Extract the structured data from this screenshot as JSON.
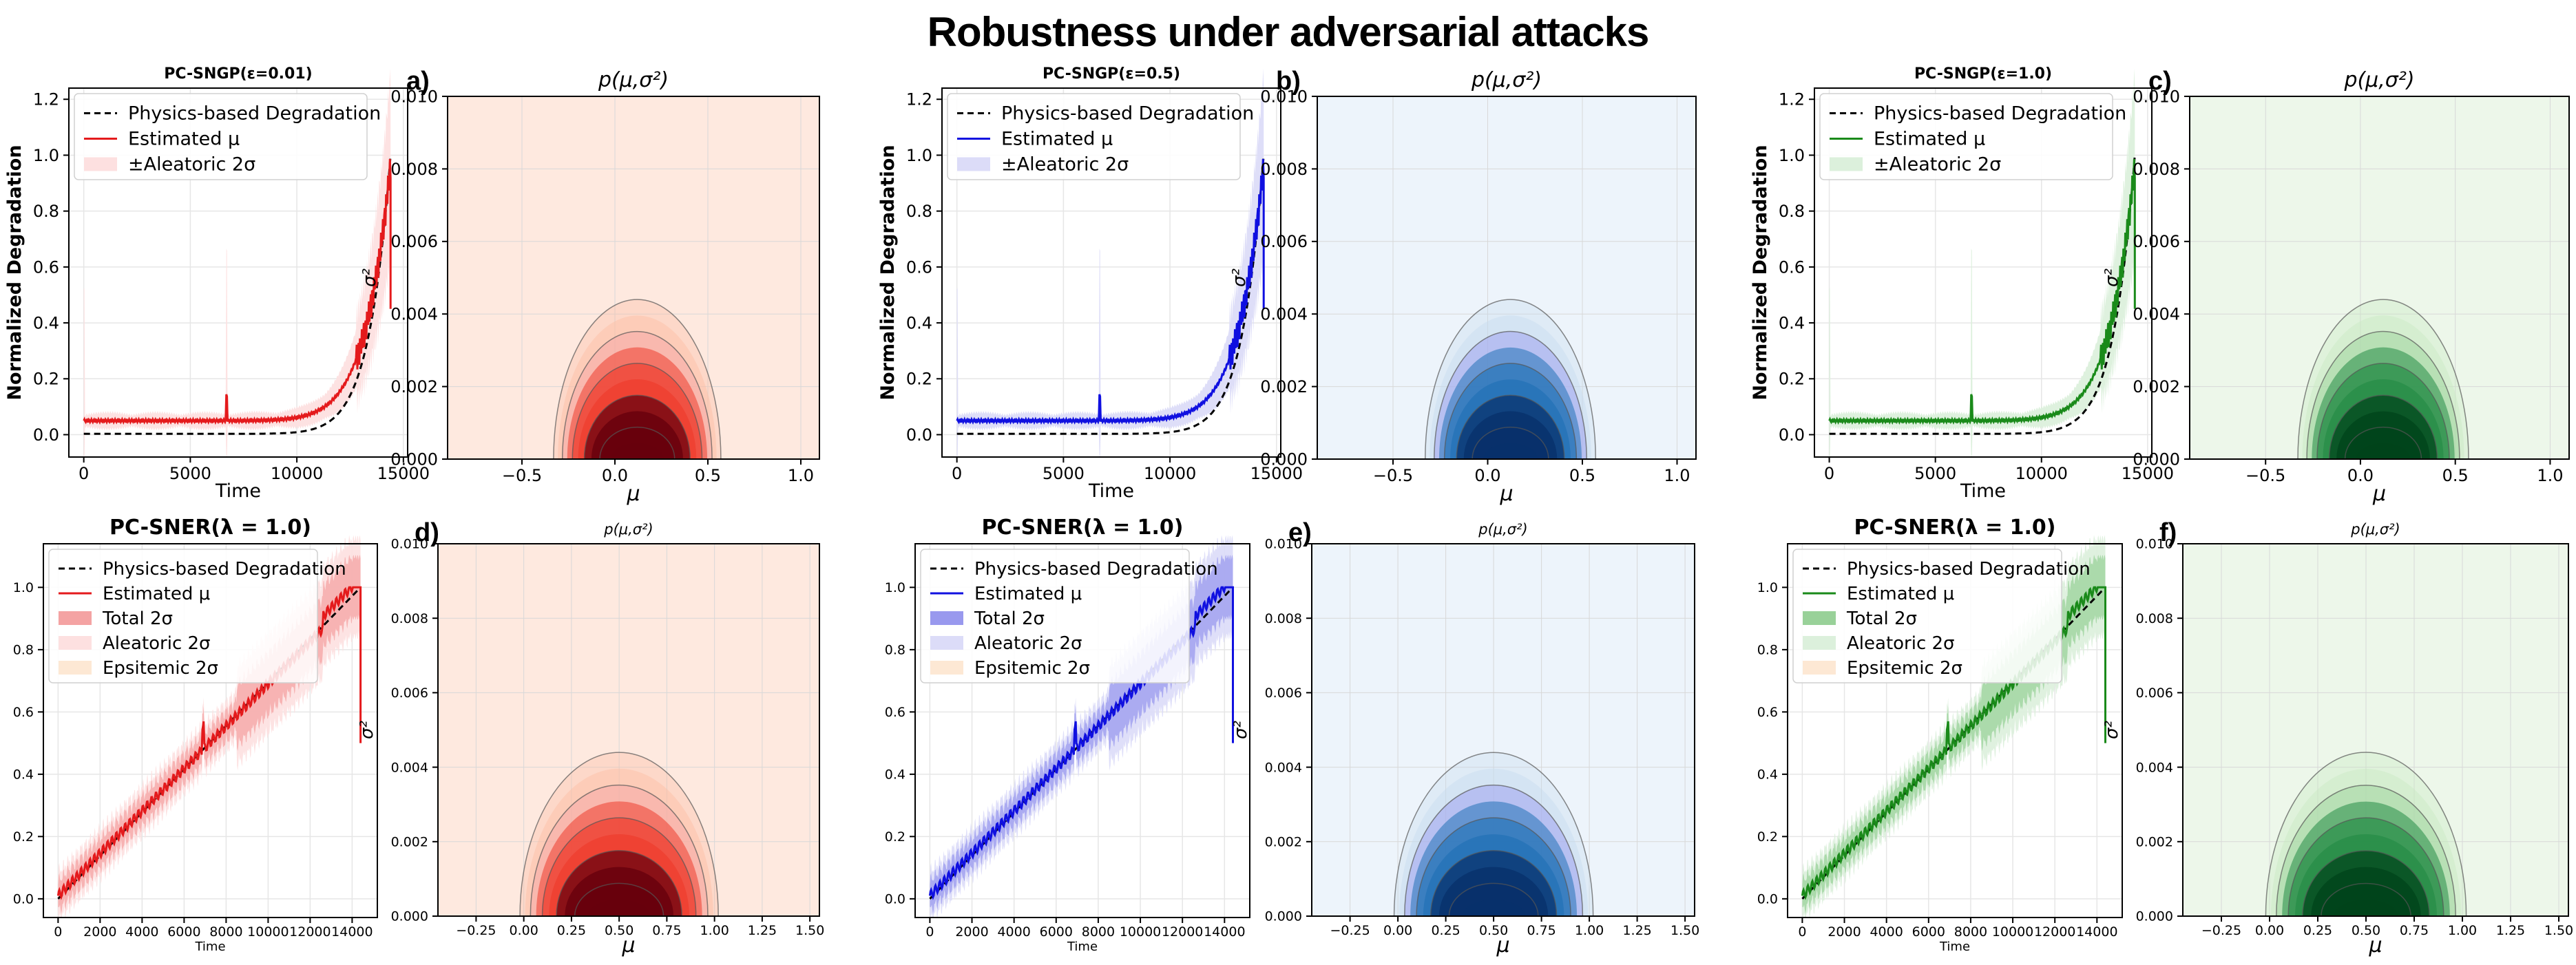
{
  "title": "Robustness under adversarial attacks",
  "colors": {
    "red": {
      "line": "#e41a1c",
      "fill": "#f4a3a3",
      "light": "#fde0e0",
      "bg": "#fee9df",
      "dark": "#67000d",
      "mid": "#ef3b2c",
      "pale": "#fcbba1"
    },
    "blue": {
      "line": "#1010e0",
      "fill": "#9999ee",
      "light": "#dcdcf8",
      "bg": "#edf4fb",
      "dark": "#08306b",
      "mid": "#2171b5",
      "pale": "#c6dbef"
    },
    "green": {
      "line": "#1a8a1a",
      "fill": "#99d199",
      "light": "#dcf0dc",
      "bg": "#edf7ea",
      "dark": "#00441b",
      "mid": "#238b45",
      "pale": "#c7e9c0"
    },
    "epistemic": "#fde8d4"
  },
  "chart_data": [
    {
      "id": "top-red-degradation",
      "type": "line",
      "title": "PC-SNGP(ε=0.01)",
      "color": "red",
      "xlabel": "Time",
      "ylabel": "Normalized Degradation",
      "xlim": [
        -700,
        15200
      ],
      "ylim": [
        -0.08,
        1.24
      ],
      "xticks": [
        0,
        5000,
        10000,
        15000
      ],
      "xtick_labels": [
        "0",
        "5000",
        "10000",
        "15000"
      ],
      "yticks": [
        0.0,
        0.2,
        0.4,
        0.6,
        0.8,
        1.0,
        1.2
      ],
      "ytick_labels": [
        "0.0",
        "0.2",
        "0.4",
        "0.6",
        "0.8",
        "1.0",
        "1.2"
      ],
      "legend": [
        "Physics-based Degradation",
        "Estimated μ",
        "±Aleatoric 2σ"
      ],
      "spike": 6700
    },
    {
      "id": "top-red-density",
      "type": "heatmap",
      "title": "p(μ,σ²)",
      "label": "a)",
      "color": "red",
      "xlabel": "μ",
      "ylabel": "σ²",
      "xlim": [
        -0.9,
        1.1
      ],
      "ylim": [
        0.0,
        0.01
      ],
      "xticks": [
        -0.5,
        0.0,
        0.5,
        1.0
      ],
      "xtick_labels": [
        "−0.5",
        "0.0",
        "0.5",
        "1.0"
      ],
      "yticks": [
        0.0,
        0.002,
        0.004,
        0.006,
        0.008,
        0.01
      ],
      "ytick_labels": [
        "0.000",
        "0.002",
        "0.004",
        "0.006",
        "0.008",
        "0.010"
      ],
      "center": 0.12,
      "halfwidth": 0.45,
      "height": 0.0044
    },
    {
      "id": "top-blue-degradation",
      "type": "line",
      "title": "PC-SNGP(ε=0.5)",
      "color": "blue",
      "xlabel": "Time",
      "ylabel": "Normalized Degradation",
      "xlim": [
        -700,
        15200
      ],
      "ylim": [
        -0.08,
        1.24
      ],
      "xticks": [
        0,
        5000,
        10000,
        15000
      ],
      "xtick_labels": [
        "0",
        "5000",
        "10000",
        "15000"
      ],
      "yticks": [
        0.0,
        0.2,
        0.4,
        0.6,
        0.8,
        1.0,
        1.2
      ],
      "ytick_labels": [
        "0.0",
        "0.2",
        "0.4",
        "0.6",
        "0.8",
        "1.0",
        "1.2"
      ],
      "legend": [
        "Physics-based Degradation",
        "Estimated μ",
        "±Aleatoric 2σ"
      ],
      "spike": 6700
    },
    {
      "id": "top-blue-density",
      "type": "heatmap",
      "title": "p(μ,σ²)",
      "label": "b)",
      "color": "blue",
      "xlabel": "μ",
      "ylabel": "σ²",
      "xlim": [
        -0.9,
        1.1
      ],
      "ylim": [
        0.0,
        0.01
      ],
      "xticks": [
        -0.5,
        0.0,
        0.5,
        1.0
      ],
      "xtick_labels": [
        "−0.5",
        "0.0",
        "0.5",
        "1.0"
      ],
      "yticks": [
        0.0,
        0.002,
        0.004,
        0.006,
        0.008,
        0.01
      ],
      "ytick_labels": [
        "0.000",
        "0.002",
        "0.004",
        "0.006",
        "0.008",
        "0.010"
      ],
      "center": 0.12,
      "halfwidth": 0.45,
      "height": 0.0044
    },
    {
      "id": "top-green-degradation",
      "type": "line",
      "title": "PC-SNGP(ε=1.0)",
      "color": "green",
      "xlabel": "Time",
      "ylabel": "Normalized Degradation",
      "xlim": [
        -700,
        15200
      ],
      "ylim": [
        -0.08,
        1.24
      ],
      "xticks": [
        0,
        5000,
        10000,
        15000
      ],
      "xtick_labels": [
        "0",
        "5000",
        "10000",
        "15000"
      ],
      "yticks": [
        0.0,
        0.2,
        0.4,
        0.6,
        0.8,
        1.0,
        1.2
      ],
      "ytick_labels": [
        "0.0",
        "0.2",
        "0.4",
        "0.6",
        "0.8",
        "1.0",
        "1.2"
      ],
      "legend": [
        "Physics-based Degradation",
        "Estimated μ",
        "±Aleatoric 2σ"
      ],
      "spike": 6700
    },
    {
      "id": "top-green-density",
      "type": "heatmap",
      "title": "p(μ,σ²)",
      "label": "c)",
      "color": "green",
      "xlabel": "μ",
      "ylabel": "σ²",
      "xlim": [
        -0.9,
        1.1
      ],
      "ylim": [
        0.0,
        0.01
      ],
      "xticks": [
        -0.5,
        0.0,
        0.5,
        1.0
      ],
      "xtick_labels": [
        "−0.5",
        "0.0",
        "0.5",
        "1.0"
      ],
      "yticks": [
        0.0,
        0.002,
        0.004,
        0.006,
        0.008,
        0.01
      ],
      "ytick_labels": [
        "0.000",
        "0.002",
        "0.004",
        "0.006",
        "0.008",
        "0.010"
      ],
      "center": 0.12,
      "halfwidth": 0.45,
      "height": 0.0044
    },
    {
      "id": "bottom-red-degradation",
      "type": "line",
      "title": "PC-SNER(λ = 1.0)",
      "color": "red",
      "xlabel": "Time",
      "ylabel": "",
      "xlim": [
        -700,
        15200
      ],
      "ylim": [
        -0.06,
        1.14
      ],
      "xticks": [
        0,
        2000,
        4000,
        6000,
        8000,
        10000,
        12000,
        14000
      ],
      "xtick_labels": [
        "0",
        "2000",
        "4000",
        "6000",
        "8000",
        "10000",
        "12000",
        "14000"
      ],
      "yticks": [
        0.0,
        0.2,
        0.4,
        0.6,
        0.8,
        1.0
      ],
      "ytick_labels": [
        "0.0",
        "0.2",
        "0.4",
        "0.6",
        "0.8",
        "1.0"
      ],
      "legend": [
        "Physics-based Degradation",
        "Estimated μ",
        "Total 2σ",
        "Aleatoric 2σ",
        "Epsitemic 2σ"
      ],
      "spike": 6900
    },
    {
      "id": "bottom-red-density",
      "type": "heatmap",
      "title": "p(μ,σ²)",
      "label": "d)",
      "color": "red",
      "xlabel": "μ",
      "ylabel": "σ²",
      "xlim": [
        -0.45,
        1.55
      ],
      "ylim": [
        0.0,
        0.01
      ],
      "xticks": [
        -0.25,
        0.0,
        0.25,
        0.5,
        0.75,
        1.0,
        1.25,
        1.5
      ],
      "xtick_labels": [
        "−0.25",
        "0.00",
        "0.25",
        "0.50",
        "0.75",
        "1.00",
        "1.25",
        "1.50"
      ],
      "yticks": [
        0.0,
        0.002,
        0.004,
        0.006,
        0.008,
        0.01
      ],
      "ytick_labels": [
        "0.000",
        "0.002",
        "0.004",
        "0.006",
        "0.008",
        "0.010"
      ],
      "center": 0.5,
      "halfwidth": 0.52,
      "height": 0.0044
    },
    {
      "id": "bottom-blue-degradation",
      "type": "line",
      "title": "PC-SNER(λ = 1.0)",
      "color": "blue",
      "xlabel": "Time",
      "ylabel": "",
      "xlim": [
        -700,
        15200
      ],
      "ylim": [
        -0.06,
        1.14
      ],
      "xticks": [
        0,
        2000,
        4000,
        6000,
        8000,
        10000,
        12000,
        14000
      ],
      "xtick_labels": [
        "0",
        "2000",
        "4000",
        "6000",
        "8000",
        "10000",
        "12000",
        "14000"
      ],
      "yticks": [
        0.0,
        0.2,
        0.4,
        0.6,
        0.8,
        1.0
      ],
      "ytick_labels": [
        "0.0",
        "0.2",
        "0.4",
        "0.6",
        "0.8",
        "1.0"
      ],
      "legend": [
        "Physics-based Degradation",
        "Estimated μ",
        "Total 2σ",
        "Aleatoric 2σ",
        "Epsitemic 2σ"
      ],
      "spike": 6900
    },
    {
      "id": "bottom-blue-density",
      "type": "heatmap",
      "title": "p(μ,σ²)",
      "label": "e)",
      "color": "blue",
      "xlabel": "μ",
      "ylabel": "σ²",
      "xlim": [
        -0.45,
        1.55
      ],
      "ylim": [
        0.0,
        0.01
      ],
      "xticks": [
        -0.25,
        0.0,
        0.25,
        0.5,
        0.75,
        1.0,
        1.25,
        1.5
      ],
      "xtick_labels": [
        "−0.25",
        "0.00",
        "0.25",
        "0.50",
        "0.75",
        "1.00",
        "1.25",
        "1.50"
      ],
      "yticks": [
        0.0,
        0.002,
        0.004,
        0.006,
        0.008,
        0.01
      ],
      "ytick_labels": [
        "0.000",
        "0.002",
        "0.004",
        "0.006",
        "0.008",
        "0.010"
      ],
      "center": 0.5,
      "halfwidth": 0.52,
      "height": 0.0044
    },
    {
      "id": "bottom-green-degradation",
      "type": "line",
      "title": "PC-SNER(λ = 1.0)",
      "color": "green",
      "xlabel": "Time",
      "ylabel": "",
      "xlim": [
        -700,
        15200
      ],
      "ylim": [
        -0.06,
        1.14
      ],
      "xticks": [
        0,
        2000,
        4000,
        6000,
        8000,
        10000,
        12000,
        14000
      ],
      "xtick_labels": [
        "0",
        "2000",
        "4000",
        "6000",
        "8000",
        "10000",
        "12000",
        "14000"
      ],
      "yticks": [
        0.0,
        0.2,
        0.4,
        0.6,
        0.8,
        1.0
      ],
      "ytick_labels": [
        "0.0",
        "0.2",
        "0.4",
        "0.6",
        "0.8",
        "1.0"
      ],
      "legend": [
        "Physics-based Degradation",
        "Estimated μ",
        "Total 2σ",
        "Aleatoric 2σ",
        "Epsitemic 2σ"
      ],
      "spike": 6900
    },
    {
      "id": "bottom-green-density",
      "type": "heatmap",
      "title": "p(μ,σ²)",
      "label": "f)",
      "color": "green",
      "xlabel": "μ",
      "ylabel": "σ²",
      "xlim": [
        -0.45,
        1.55
      ],
      "ylim": [
        0.0,
        0.01
      ],
      "xticks": [
        -0.25,
        0.0,
        0.25,
        0.5,
        0.75,
        1.0,
        1.25,
        1.5
      ],
      "xtick_labels": [
        "−0.25",
        "0.00",
        "0.25",
        "0.50",
        "0.75",
        "1.00",
        "1.25",
        "1.50"
      ],
      "yticks": [
        0.0,
        0.002,
        0.004,
        0.006,
        0.008,
        0.01
      ],
      "ytick_labels": [
        "0.000",
        "0.002",
        "0.004",
        "0.006",
        "0.008",
        "0.010"
      ],
      "center": 0.5,
      "halfwidth": 0.52,
      "height": 0.0044
    }
  ]
}
